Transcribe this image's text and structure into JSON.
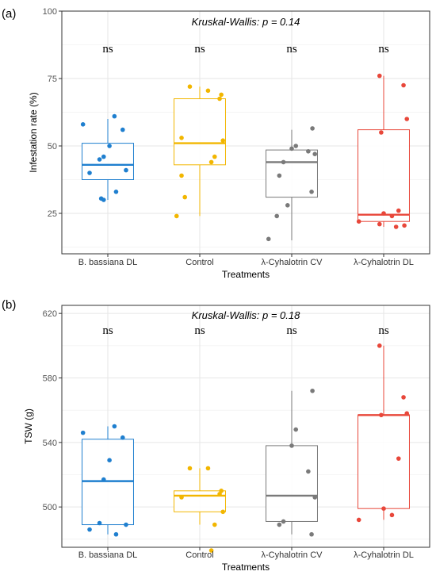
{
  "chart_data": [
    {
      "type": "box",
      "panel_label": "(a)",
      "annotation": "Kruskal-Wallis: p = 0.14",
      "xlabel": "Treatments",
      "ylabel": "Infestation rate (%)",
      "ylim": [
        10,
        100
      ],
      "yticks": [
        25,
        50,
        75,
        100
      ],
      "grid": true,
      "categories": [
        "B. bassiana DL",
        "Control",
        "λ-Cyhalotrin CV",
        "λ-Cyhalotrin DL"
      ],
      "colors": [
        "#1f7fcf",
        "#f2b600",
        "#7a7a7a",
        "#e8473a"
      ],
      "significance": [
        "ns",
        "ns",
        "ns",
        "ns"
      ],
      "boxes": [
        {
          "q1": 37.5,
          "median": 43,
          "q3": 51,
          "whisker_low": 30,
          "whisker_high": 60,
          "points": [
            61,
            58,
            56,
            50,
            46,
            45,
            41,
            40,
            33,
            30.5,
            30
          ]
        },
        {
          "q1": 43,
          "median": 51,
          "q3": 67.5,
          "whisker_low": 24,
          "whisker_high": 72,
          "points": [
            72,
            70.5,
            69,
            67.5,
            53,
            52,
            46,
            44,
            39,
            31,
            24
          ]
        },
        {
          "q1": 31,
          "median": 44,
          "q3": 48.5,
          "whisker_low": 15,
          "whisker_high": 56,
          "points": [
            56.5,
            50,
            49,
            48,
            47,
            44,
            39,
            33,
            28,
            24,
            15.5
          ]
        },
        {
          "q1": 22,
          "median": 24.5,
          "q3": 56,
          "whisker_low": 20,
          "whisker_high": 76,
          "points": [
            76,
            72.5,
            60,
            55,
            26,
            25,
            24,
            22,
            21,
            20.5,
            20
          ]
        }
      ]
    },
    {
      "type": "box",
      "panel_label": "(b)",
      "annotation": "Kruskal-Wallis: p =  0.18",
      "xlabel": "Treatments",
      "ylabel": "TSW (g)",
      "ylim": [
        475,
        625
      ],
      "yticks": [
        500,
        540,
        580,
        620
      ],
      "grid": true,
      "categories": [
        "B. bassiana DL",
        "Control",
        "λ-Cyhalotrin CV",
        "λ-Cyhalotrin DL"
      ],
      "colors": [
        "#1f7fcf",
        "#f2b600",
        "#7a7a7a",
        "#e8473a"
      ],
      "significance": [
        "ns",
        "ns",
        "ns",
        "ns"
      ],
      "boxes": [
        {
          "q1": 489,
          "median": 516,
          "q3": 542,
          "whisker_low": 483,
          "whisker_high": 550,
          "points": [
            550,
            546,
            543,
            529,
            517,
            490,
            489,
            486,
            483
          ]
        },
        {
          "q1": 497,
          "median": 507,
          "q3": 510,
          "whisker_low": 489,
          "whisker_high": 524,
          "points": [
            524,
            524,
            510,
            508,
            506,
            497,
            489,
            473
          ]
        },
        {
          "q1": 491,
          "median": 507,
          "q3": 538,
          "whisker_low": 483,
          "whisker_high": 572,
          "points": [
            572,
            548,
            538,
            522,
            506,
            491,
            489,
            483
          ]
        },
        {
          "q1": 499,
          "median": 557,
          "q3": 557,
          "whisker_low": 492,
          "whisker_high": 600,
          "points": [
            600,
            568,
            558,
            557,
            530,
            499,
            495,
            492
          ]
        }
      ]
    }
  ]
}
